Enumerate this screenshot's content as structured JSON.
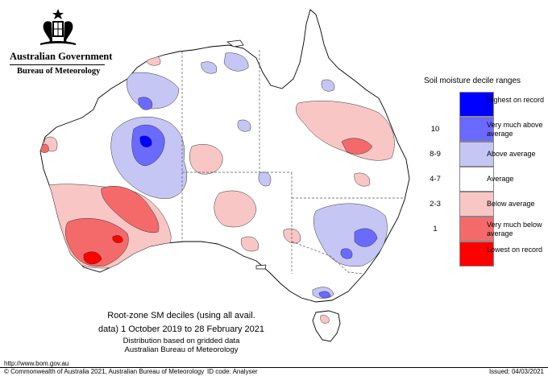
{
  "header": {
    "government": "Australian Government",
    "bureau": "Bureau of Meteorology"
  },
  "legend": {
    "title": "Soil moisture decile ranges",
    "items": [
      {
        "range": "",
        "label": "Highest on record",
        "color": "#0000ff"
      },
      {
        "range": "10",
        "label": "Very much above average",
        "color": "#6a6aff"
      },
      {
        "range": "8-9",
        "label": "Above average",
        "color": "#c6c6f5"
      },
      {
        "range": "4-7",
        "label": "Average",
        "color": "#ffffff"
      },
      {
        "range": "2-3",
        "label": "Below average",
        "color": "#f9c6c6"
      },
      {
        "range": "1",
        "label": "Very much below average",
        "color": "#f46a6a"
      },
      {
        "range": "",
        "label": "Lowest on record",
        "color": "#ff0000"
      }
    ]
  },
  "caption": {
    "line1": "Root-zone SM deciles (using all avail.",
    "line2": "data) 1 October 2019 to 28 February 2021",
    "line3": "Distribution based on gridded data",
    "line4": "Australian Bureau of Meteorology"
  },
  "footer": {
    "url": "http://www.bom.gov.au",
    "copyright": "© Commonwealth of Australia 2021, Australian Bureau of Meteorology",
    "id_code": "ID code: Analyser",
    "issued": "Issued: 04/03/2021"
  }
}
